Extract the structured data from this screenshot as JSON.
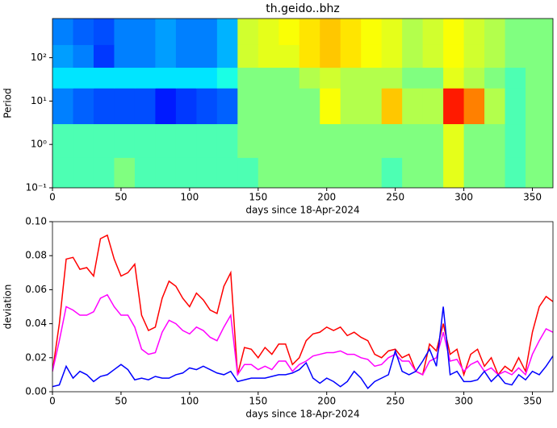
{
  "chart_data": [
    {
      "type": "heatmap",
      "title": "th.geido..bhz",
      "x_label": "days since 18-Apr-2024",
      "y_label": "Period",
      "colormap": "jet",
      "ylog": true,
      "x_edges": [
        0,
        15,
        30,
        45,
        60,
        75,
        90,
        105,
        120,
        135,
        150,
        165,
        180,
        195,
        210,
        225,
        240,
        255,
        270,
        285,
        300,
        315,
        330,
        345,
        360,
        365
      ],
      "y_edges": [
        0.1,
        0.5,
        3,
        20,
        60,
        200,
        800
      ],
      "values": [
        [
          0.45,
          0.45,
          0.45,
          0.5,
          0.45,
          0.45,
          0.45,
          0.45,
          0.45,
          0.45,
          0.5,
          0.5,
          0.5,
          0.5,
          0.5,
          0.5,
          0.45,
          0.5,
          0.5,
          0.6,
          0.5,
          0.5,
          0.45,
          0.5,
          0.5
        ],
        [
          0.45,
          0.45,
          0.45,
          0.45,
          0.45,
          0.45,
          0.45,
          0.45,
          0.45,
          0.5,
          0.5,
          0.5,
          0.5,
          0.5,
          0.5,
          0.5,
          0.5,
          0.5,
          0.5,
          0.6,
          0.5,
          0.5,
          0.45,
          0.5,
          0.5
        ],
        [
          0.25,
          0.22,
          0.2,
          0.2,
          0.2,
          0.15,
          0.18,
          0.2,
          0.22,
          0.5,
          0.5,
          0.5,
          0.5,
          0.62,
          0.55,
          0.55,
          0.68,
          0.55,
          0.55,
          0.85,
          0.75,
          0.55,
          0.45,
          0.5,
          0.5
        ],
        [
          0.35,
          0.35,
          0.35,
          0.35,
          0.35,
          0.35,
          0.35,
          0.35,
          0.4,
          0.5,
          0.5,
          0.5,
          0.55,
          0.58,
          0.55,
          0.55,
          0.55,
          0.5,
          0.5,
          0.6,
          0.55,
          0.5,
          0.45,
          0.5,
          0.5
        ],
        [
          0.28,
          0.25,
          0.18,
          0.25,
          0.25,
          0.28,
          0.25,
          0.25,
          0.3,
          0.58,
          0.6,
          0.6,
          0.65,
          0.68,
          0.65,
          0.62,
          0.6,
          0.55,
          0.58,
          0.62,
          0.58,
          0.55,
          0.5,
          0.5,
          0.5
        ],
        [
          0.25,
          0.22,
          0.2,
          0.25,
          0.25,
          0.28,
          0.25,
          0.25,
          0.3,
          0.58,
          0.6,
          0.62,
          0.65,
          0.68,
          0.65,
          0.62,
          0.6,
          0.55,
          0.58,
          0.62,
          0.58,
          0.55,
          0.5,
          0.5,
          0.5
        ]
      ],
      "xlim": [
        0,
        365
      ],
      "xticks": [
        0,
        50,
        100,
        150,
        200,
        250,
        300,
        350
      ],
      "ylim": [
        0.1,
        800
      ],
      "yticks": [
        {
          "value": 0.1,
          "label": "10⁻¹"
        },
        {
          "value": 1,
          "label": "10⁰"
        },
        {
          "value": 10,
          "label": "10¹"
        },
        {
          "value": 100,
          "label": "10²"
        }
      ]
    },
    {
      "type": "line",
      "x_label": "days since 18-Apr-2024",
      "y_label": "deviation",
      "x": [
        0,
        5,
        10,
        15,
        20,
        25,
        30,
        35,
        40,
        45,
        50,
        55,
        60,
        65,
        70,
        75,
        80,
        85,
        90,
        95,
        100,
        105,
        110,
        115,
        120,
        125,
        130,
        135,
        140,
        145,
        150,
        155,
        160,
        165,
        170,
        175,
        180,
        185,
        190,
        195,
        200,
        205,
        210,
        215,
        220,
        225,
        230,
        235,
        240,
        245,
        250,
        255,
        260,
        265,
        270,
        275,
        280,
        285,
        290,
        295,
        300,
        305,
        310,
        315,
        320,
        325,
        330,
        335,
        340,
        345,
        350,
        355,
        360,
        365
      ],
      "series": [
        {
          "color": "#ff0000",
          "values": [
            0.012,
            0.04,
            0.078,
            0.079,
            0.072,
            0.073,
            0.068,
            0.09,
            0.092,
            0.078,
            0.068,
            0.07,
            0.075,
            0.045,
            0.036,
            0.038,
            0.055,
            0.065,
            0.062,
            0.055,
            0.05,
            0.058,
            0.054,
            0.048,
            0.046,
            0.062,
            0.07,
            0.01,
            0.026,
            0.025,
            0.02,
            0.026,
            0.022,
            0.028,
            0.028,
            0.016,
            0.02,
            0.03,
            0.034,
            0.035,
            0.038,
            0.036,
            0.038,
            0.033,
            0.035,
            0.032,
            0.03,
            0.022,
            0.02,
            0.024,
            0.025,
            0.02,
            0.022,
            0.012,
            0.01,
            0.028,
            0.024,
            0.04,
            0.022,
            0.025,
            0.01,
            0.022,
            0.025,
            0.015,
            0.02,
            0.01,
            0.015,
            0.012,
            0.02,
            0.012,
            0.035,
            0.05,
            0.056,
            0.053
          ]
        },
        {
          "color": "#ff00ff",
          "values": [
            0.012,
            0.03,
            0.05,
            0.048,
            0.045,
            0.045,
            0.047,
            0.055,
            0.057,
            0.05,
            0.045,
            0.045,
            0.038,
            0.025,
            0.022,
            0.023,
            0.035,
            0.042,
            0.04,
            0.036,
            0.034,
            0.038,
            0.036,
            0.032,
            0.03,
            0.038,
            0.045,
            0.01,
            0.016,
            0.016,
            0.013,
            0.015,
            0.013,
            0.018,
            0.018,
            0.012,
            0.016,
            0.018,
            0.021,
            0.022,
            0.023,
            0.023,
            0.024,
            0.022,
            0.022,
            0.02,
            0.019,
            0.015,
            0.016,
            0.02,
            0.022,
            0.018,
            0.018,
            0.012,
            0.01,
            0.018,
            0.02,
            0.035,
            0.018,
            0.019,
            0.012,
            0.016,
            0.018,
            0.012,
            0.014,
            0.01,
            0.012,
            0.01,
            0.014,
            0.01,
            0.022,
            0.03,
            0.037,
            0.035
          ]
        },
        {
          "color": "#0000ff",
          "values": [
            0.003,
            0.004,
            0.015,
            0.008,
            0.012,
            0.01,
            0.006,
            0.009,
            0.01,
            0.013,
            0.016,
            0.013,
            0.007,
            0.008,
            0.007,
            0.009,
            0.008,
            0.008,
            0.01,
            0.011,
            0.014,
            0.013,
            0.015,
            0.013,
            0.011,
            0.01,
            0.012,
            0.006,
            0.007,
            0.008,
            0.008,
            0.008,
            0.009,
            0.01,
            0.01,
            0.011,
            0.013,
            0.017,
            0.008,
            0.005,
            0.008,
            0.006,
            0.003,
            0.006,
            0.012,
            0.008,
            0.002,
            0.006,
            0.008,
            0.01,
            0.024,
            0.012,
            0.01,
            0.012,
            0.018,
            0.025,
            0.015,
            0.05,
            0.01,
            0.012,
            0.006,
            0.006,
            0.007,
            0.012,
            0.006,
            0.01,
            0.005,
            0.004,
            0.01,
            0.007,
            0.012,
            0.01,
            0.015,
            0.021
          ]
        }
      ],
      "xlim": [
        0,
        365
      ],
      "xticks": [
        0,
        50,
        100,
        150,
        200,
        250,
        300,
        350
      ],
      "ylim": [
        0,
        0.1
      ],
      "yticks": [
        {
          "value": 0,
          "label": "0.00"
        },
        {
          "value": 0.02,
          "label": "0.02"
        },
        {
          "value": 0.04,
          "label": "0.04"
        },
        {
          "value": 0.06,
          "label": "0.06"
        },
        {
          "value": 0.08,
          "label": "0.08"
        },
        {
          "value": 0.1,
          "label": "0.10"
        }
      ]
    }
  ]
}
